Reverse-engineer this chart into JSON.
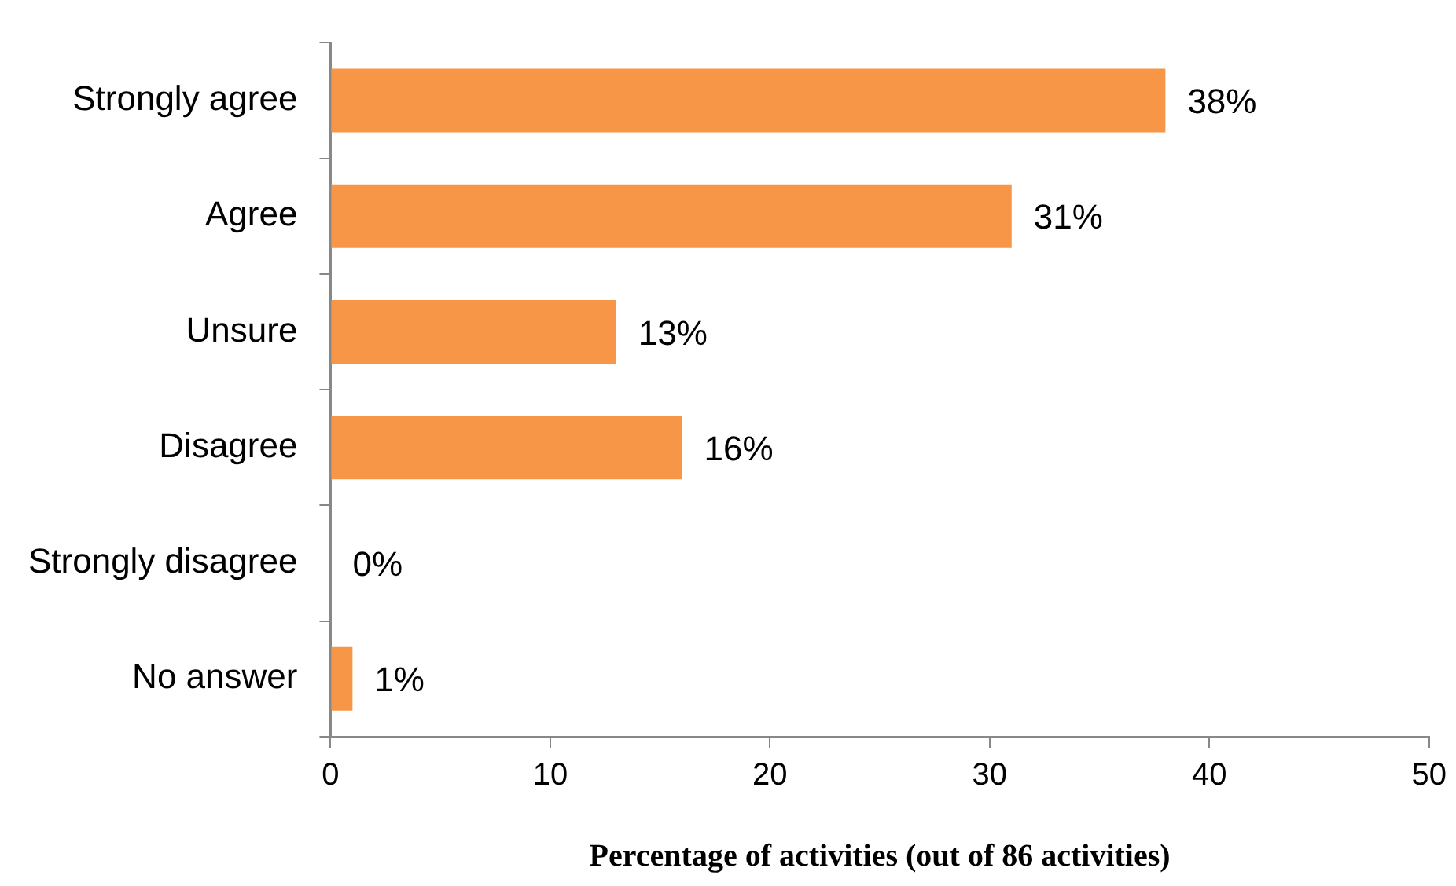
{
  "chart_data": {
    "type": "bar",
    "orientation": "horizontal",
    "xlabel": "Percentage of activities (out of 86 activities)",
    "categories": [
      "Strongly agree",
      "Agree",
      "Unsure",
      "Disagree",
      "Strongly disagree",
      "No answer"
    ],
    "values": [
      38,
      31,
      13,
      16,
      0,
      1
    ],
    "color": "#f79646",
    "value_labels": [
      "38%",
      "31%",
      "13%",
      "16%",
      "0%",
      "1%"
    ],
    "xlim": [
      0,
      50
    ],
    "xticks": [
      0,
      10,
      20,
      30,
      40,
      50
    ],
    "grid": false,
    "legend": false
  }
}
